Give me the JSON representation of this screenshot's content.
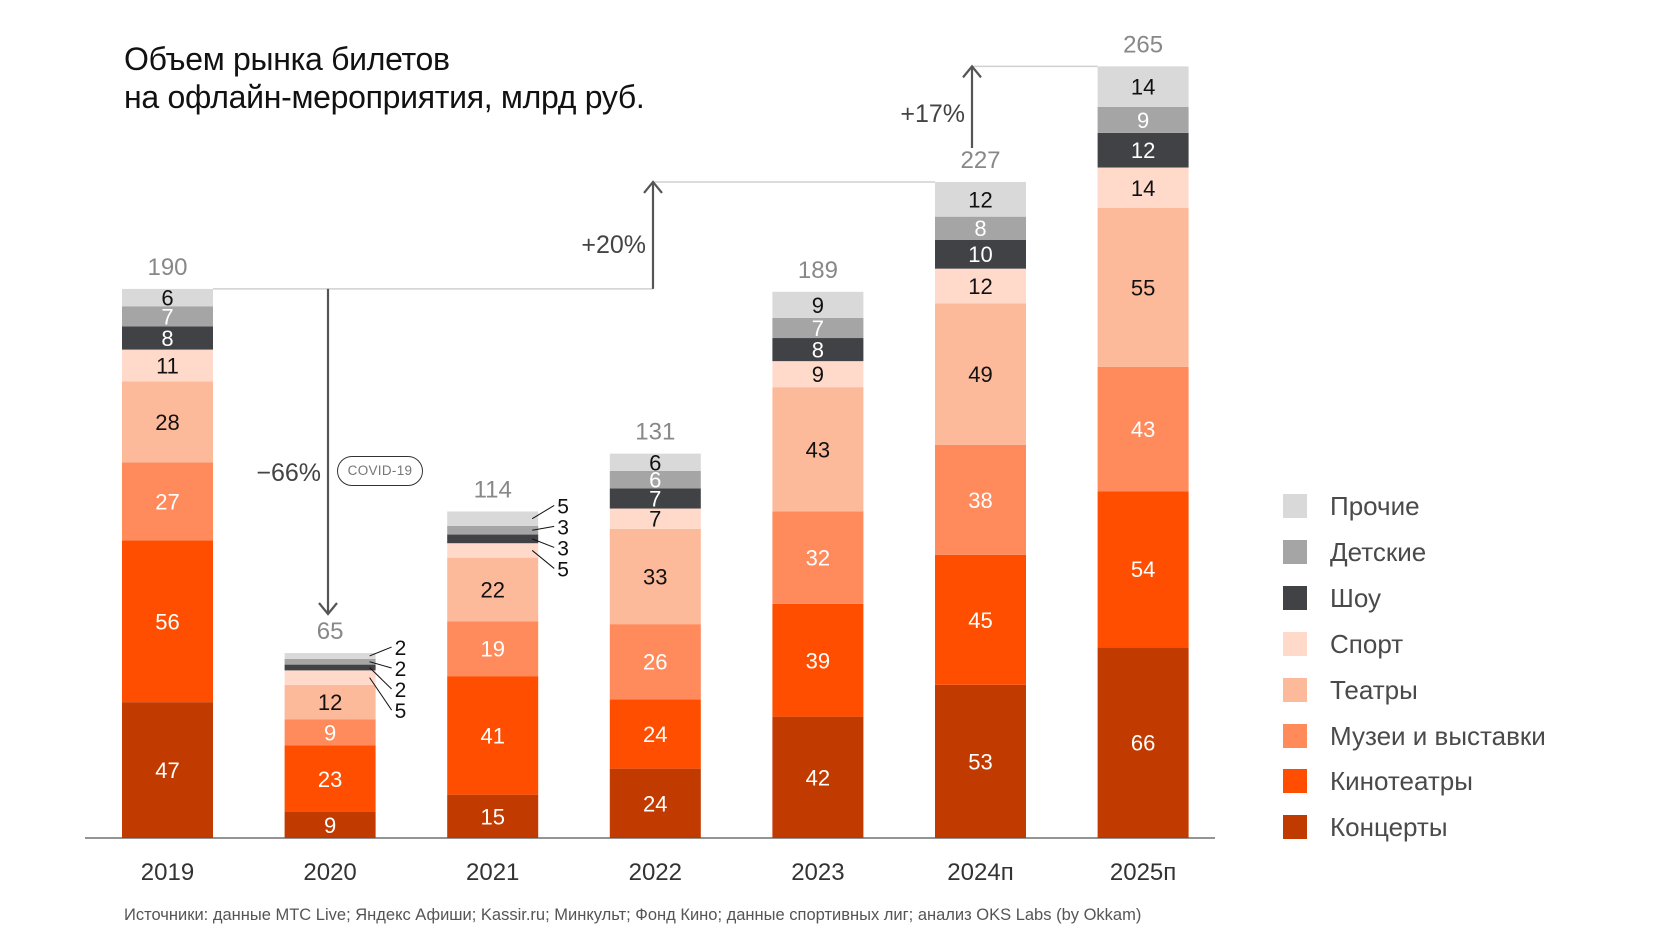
{
  "title": {
    "line1": "Объем рынка билетов",
    "line2": "на офлайн-мероприятия, млрд руб."
  },
  "source": "Источники: данные МТС Live; Яндекс Афиши; Kassir.ru; Минкульт; Фонд Кино; данные спортивных лиг; анализ OKS Labs (by Okkam)",
  "annotations": {
    "drop": "−66%",
    "covid_badge": "COVID-19",
    "growth_2022_2024": "+20%",
    "growth_2024_2025": "+17%"
  },
  "chart_data": {
    "type": "bar",
    "stacked": true,
    "title": "Объем рынка билетов на офлайн-мероприятия, млрд руб.",
    "xlabel": "",
    "ylabel": "",
    "ylim": [
      0,
      265
    ],
    "grid": false,
    "legend_position": "right",
    "categories": [
      "2019",
      "2020",
      "2021",
      "2022",
      "2023",
      "2024п",
      "2025п"
    ],
    "totals": [
      190,
      65,
      114,
      131,
      189,
      227,
      265
    ],
    "series": [
      {
        "name": "Концерты",
        "color": "#C13A00",
        "label_color": "#ffffff",
        "values": [
          47,
          9,
          15,
          24,
          42,
          53,
          66
        ]
      },
      {
        "name": "Кинотеатры",
        "color": "#FF4E00",
        "label_color": "#ffffff",
        "values": [
          56,
          23,
          41,
          24,
          39,
          45,
          54
        ]
      },
      {
        "name": "Музеи и выставки",
        "color": "#FF8A5B",
        "label_color": "#ffffff",
        "values": [
          27,
          9,
          19,
          26,
          32,
          38,
          43
        ]
      },
      {
        "name": "Театры",
        "color": "#FDBA9B",
        "label_color": "#111111",
        "values": [
          28,
          12,
          22,
          33,
          43,
          49,
          55
        ]
      },
      {
        "name": "Спорт",
        "color": "#FFDACB",
        "label_color": "#111111",
        "values": [
          11,
          5,
          5,
          7,
          9,
          12,
          14
        ]
      },
      {
        "name": "Шоу",
        "color": "#414246",
        "label_color": "#ffffff",
        "values": [
          8,
          2,
          3,
          7,
          8,
          10,
          12
        ]
      },
      {
        "name": "Детские",
        "color": "#A5A5A5",
        "label_color": "#ffffff",
        "values": [
          7,
          2,
          3,
          6,
          7,
          8,
          9
        ]
      },
      {
        "name": "Прочие",
        "color": "#D9D9D9",
        "label_color": "#111111",
        "values": [
          6,
          2,
          5,
          6,
          9,
          12,
          14
        ]
      }
    ],
    "outside_labels_categories": [
      "2020",
      "2021"
    ],
    "legend_order": [
      "Прочие",
      "Детские",
      "Шоу",
      "Спорт",
      "Театры",
      "Музеи и выставки",
      "Кинотеатры",
      "Концерты"
    ]
  }
}
